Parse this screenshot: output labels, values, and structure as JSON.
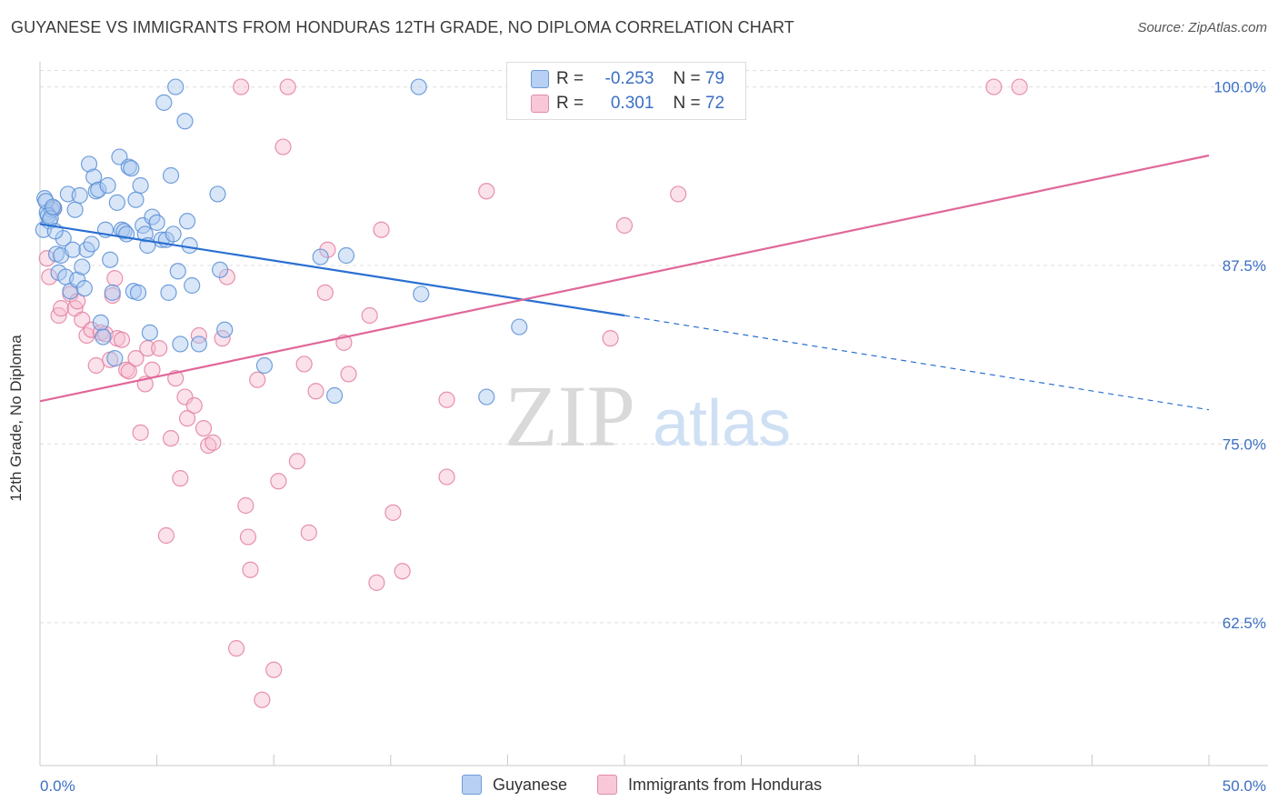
{
  "title": "GUYANESE VS IMMIGRANTS FROM HONDURAS 12TH GRADE, NO DIPLOMA CORRELATION CHART",
  "source": "Source: ZipAtlas.com",
  "watermark": {
    "zip": "ZIP",
    "atlas": "atlas"
  },
  "legend": {
    "guyanese": {
      "r_label": "R =",
      "r_value": "-0.253",
      "n_label": "N =",
      "n_value": "79"
    },
    "honduras": {
      "r_label": "R =",
      "r_value": "0.301",
      "n_label": "N =",
      "n_value": "72"
    }
  },
  "bottom_legend": {
    "guyanese": "Guyanese",
    "honduras": "Immigrants from Honduras"
  },
  "colors": {
    "guyanese_fill": "#a9c7f0",
    "guyanese_stroke": "#5b8fd6",
    "guyanese_line": "#2a6fd1",
    "honduras_fill": "#f6bdd0",
    "honduras_stroke": "#e27fa1",
    "honduras_line": "#e0679a",
    "tick_label": "#3b6fc4",
    "grid": "#dddddd"
  },
  "chart_data": {
    "type": "scatter",
    "xlabel": "",
    "ylabel": "12th Grade, No Diploma",
    "x_range": [
      0.0,
      50.0
    ],
    "y_range": [
      52.5,
      101.5
    ],
    "x_tick_labels": [
      "0.0%",
      "50.0%"
    ],
    "y_ticks": [
      {
        "value": 100.0,
        "label": "100.0%"
      },
      {
        "value": 87.5,
        "label": "87.5%"
      },
      {
        "value": 75.0,
        "label": "75.0%"
      },
      {
        "value": 62.5,
        "label": "62.5%"
      }
    ],
    "grid": true,
    "series": [
      {
        "name": "Guyanese",
        "trend": {
          "x0": 0.0,
          "y0": 90.4,
          "x1": 25.0,
          "y1": 84.0,
          "dash_to_x": 50.0,
          "dash_to_y": 77.4
        },
        "points": [
          [
            0.2,
            92.2
          ],
          [
            0.3,
            91.2
          ],
          [
            0.4,
            90.6
          ],
          [
            0.5,
            91.4
          ],
          [
            0.6,
            91.5
          ],
          [
            0.7,
            88.3
          ],
          [
            0.8,
            87.0
          ],
          [
            0.9,
            88.2
          ],
          [
            1.0,
            89.4
          ],
          [
            1.1,
            86.7
          ],
          [
            1.2,
            92.5
          ],
          [
            1.3,
            85.7
          ],
          [
            1.4,
            88.6
          ],
          [
            1.5,
            91.4
          ],
          [
            1.6,
            86.5
          ],
          [
            1.7,
            92.4
          ],
          [
            1.8,
            87.4
          ],
          [
            1.9,
            85.9
          ],
          [
            2.0,
            88.6
          ],
          [
            2.1,
            94.6
          ],
          [
            2.2,
            89.0
          ],
          [
            2.3,
            93.7
          ],
          [
            2.4,
            92.7
          ],
          [
            2.5,
            92.8
          ],
          [
            2.6,
            83.5
          ],
          [
            2.7,
            82.5
          ],
          [
            2.8,
            90.0
          ],
          [
            2.9,
            93.1
          ],
          [
            3.0,
            87.9
          ],
          [
            3.1,
            85.6
          ],
          [
            3.2,
            81.0
          ],
          [
            3.3,
            91.9
          ],
          [
            3.4,
            95.1
          ],
          [
            3.5,
            90.0
          ],
          [
            3.6,
            89.9
          ],
          [
            3.7,
            89.7
          ],
          [
            3.8,
            94.4
          ],
          [
            3.9,
            94.3
          ],
          [
            4.0,
            85.7
          ],
          [
            4.1,
            92.1
          ],
          [
            4.2,
            85.6
          ],
          [
            4.3,
            93.1
          ],
          [
            4.4,
            90.3
          ],
          [
            4.5,
            89.7
          ],
          [
            4.6,
            88.9
          ],
          [
            4.7,
            82.8
          ],
          [
            4.8,
            90.9
          ],
          [
            5.0,
            90.5
          ],
          [
            5.2,
            89.3
          ],
          [
            5.3,
            98.9
          ],
          [
            5.4,
            89.3
          ],
          [
            5.5,
            85.6
          ],
          [
            5.6,
            93.8
          ],
          [
            5.7,
            89.7
          ],
          [
            5.8,
            100.0
          ],
          [
            5.9,
            87.1
          ],
          [
            6.0,
            82.0
          ],
          [
            6.2,
            97.6
          ],
          [
            6.3,
            90.6
          ],
          [
            6.4,
            88.9
          ],
          [
            6.5,
            86.1
          ],
          [
            6.8,
            82.0
          ],
          [
            7.6,
            92.5
          ],
          [
            7.7,
            87.2
          ],
          [
            7.9,
            83.0
          ],
          [
            9.6,
            80.5
          ],
          [
            12.0,
            88.1
          ],
          [
            12.6,
            78.4
          ],
          [
            13.1,
            88.2
          ],
          [
            16.2,
            100.0
          ],
          [
            16.3,
            85.5
          ],
          [
            19.1,
            78.3
          ],
          [
            20.5,
            83.2
          ],
          [
            0.15,
            90.0
          ],
          [
            0.25,
            92.0
          ],
          [
            0.35,
            91.0
          ],
          [
            0.45,
            90.8
          ],
          [
            0.55,
            91.6
          ],
          [
            0.65,
            89.9
          ]
        ]
      },
      {
        "name": "Immigrants from Honduras",
        "trend": {
          "x0": 0.0,
          "y0": 78.0,
          "x1": 50.0,
          "y1": 95.2
        },
        "points": [
          [
            0.3,
            88.0
          ],
          [
            0.4,
            86.7
          ],
          [
            0.6,
            91.5
          ],
          [
            0.8,
            84.0
          ],
          [
            0.9,
            84.5
          ],
          [
            1.3,
            85.5
          ],
          [
            1.5,
            84.5
          ],
          [
            1.6,
            85.0
          ],
          [
            1.8,
            83.7
          ],
          [
            2.0,
            82.6
          ],
          [
            2.2,
            83.0
          ],
          [
            2.4,
            80.5
          ],
          [
            2.6,
            82.8
          ],
          [
            2.8,
            82.7
          ],
          [
            3.0,
            80.9
          ],
          [
            3.1,
            85.4
          ],
          [
            3.2,
            86.6
          ],
          [
            3.3,
            82.4
          ],
          [
            3.5,
            82.3
          ],
          [
            3.7,
            80.2
          ],
          [
            3.8,
            80.1
          ],
          [
            4.1,
            81.0
          ],
          [
            4.3,
            75.8
          ],
          [
            4.5,
            79.2
          ],
          [
            4.6,
            81.7
          ],
          [
            4.8,
            80.2
          ],
          [
            5.1,
            81.7
          ],
          [
            5.4,
            68.6
          ],
          [
            5.6,
            75.4
          ],
          [
            5.8,
            79.6
          ],
          [
            6.0,
            72.6
          ],
          [
            6.2,
            78.3
          ],
          [
            6.3,
            76.8
          ],
          [
            6.6,
            77.7
          ],
          [
            6.8,
            82.6
          ],
          [
            7.0,
            76.1
          ],
          [
            7.2,
            74.9
          ],
          [
            7.4,
            75.1
          ],
          [
            7.8,
            82.4
          ],
          [
            8.0,
            86.7
          ],
          [
            8.4,
            60.7
          ],
          [
            8.6,
            100.0
          ],
          [
            8.8,
            70.7
          ],
          [
            8.9,
            68.5
          ],
          [
            9.0,
            66.2
          ],
          [
            9.3,
            79.5
          ],
          [
            9.5,
            57.1
          ],
          [
            10.0,
            59.2
          ],
          [
            10.2,
            72.4
          ],
          [
            10.4,
            95.8
          ],
          [
            10.6,
            100.0
          ],
          [
            11.0,
            73.8
          ],
          [
            11.3,
            80.6
          ],
          [
            11.5,
            68.8
          ],
          [
            11.8,
            78.7
          ],
          [
            12.2,
            85.6
          ],
          [
            12.3,
            88.6
          ],
          [
            13.0,
            82.1
          ],
          [
            13.2,
            79.9
          ],
          [
            14.1,
            84.0
          ],
          [
            14.4,
            65.3
          ],
          [
            14.6,
            90.0
          ],
          [
            15.1,
            70.2
          ],
          [
            15.5,
            66.1
          ],
          [
            17.4,
            78.1
          ],
          [
            17.4,
            72.7
          ],
          [
            19.1,
            92.7
          ],
          [
            24.4,
            82.4
          ],
          [
            25.0,
            90.3
          ],
          [
            27.3,
            92.5
          ],
          [
            40.8,
            100.0
          ],
          [
            41.9,
            100.0
          ]
        ]
      }
    ]
  }
}
